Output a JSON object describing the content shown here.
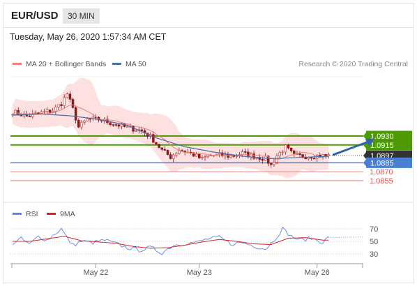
{
  "header": {
    "symbol": "EUR/USD",
    "timeframe": "30 MIN"
  },
  "timestamp": "Tuesday, May 26, 2020 1:57:34 AM CET",
  "legend": {
    "ma_bb_label": "MA 20 + Bollinger Bands",
    "ma50_label": "MA 50",
    "rsi_label": "RSI",
    "rsi_ma_label": "9MA",
    "credit": "Research © 2020 Trading Central"
  },
  "colors": {
    "ma20": "#f08080",
    "bollinger_fill": "#fde0e0",
    "ma50": "#4a6fa5",
    "resistance": "#4d9a06",
    "pivot": "#4a7fd4",
    "support": "#f28b8b",
    "last": "#333333",
    "arrow": "#2f66a8",
    "rsi": "#5b86e5",
    "rsi_ma": "#e02020",
    "candle_dark": "#8b1a1a"
  },
  "chart_data": [
    {
      "type": "candlestick",
      "title": "",
      "x_tick_labels": [
        "May 22",
        "May 23",
        "May 26"
      ],
      "price_levels": [
        {
          "value": 1.093,
          "label": "1.0930",
          "role": "resistance"
        },
        {
          "value": 1.0915,
          "label": "1.0915",
          "role": "resistance"
        },
        {
          "value": 1.0897,
          "label": "1.0897",
          "role": "last"
        },
        {
          "value": 1.0885,
          "label": "1.0885",
          "role": "pivot"
        },
        {
          "value": 1.087,
          "label": "1.0870",
          "role": "support"
        },
        {
          "value": 1.0855,
          "label": "1.0855",
          "role": "support"
        }
      ],
      "price_path": [
        [
          0,
          1.0971
        ],
        [
          5,
          1.0963
        ],
        [
          10,
          1.0969
        ],
        [
          14,
          1.0973
        ],
        [
          17,
          1.0985
        ],
        [
          19,
          1.1001
        ],
        [
          21,
          1.0975
        ],
        [
          23,
          1.0945
        ],
        [
          26,
          1.0958
        ],
        [
          30,
          1.0958
        ],
        [
          35,
          1.0951
        ],
        [
          40,
          1.0944
        ],
        [
          45,
          1.0939
        ],
        [
          48,
          1.0929
        ],
        [
          52,
          1.0906
        ],
        [
          55,
          1.0895
        ],
        [
          58,
          1.0907
        ],
        [
          62,
          1.0901
        ],
        [
          66,
          1.0891
        ],
        [
          68,
          1.0897
        ],
        [
          72,
          1.0898
        ],
        [
          76,
          1.0896
        ],
        [
          80,
          1.0901
        ],
        [
          84,
          1.0896
        ],
        [
          88,
          1.0892
        ],
        [
          90,
          1.0881
        ],
        [
          92,
          1.0897
        ],
        [
          95,
          1.0911
        ],
        [
          98,
          1.0897
        ],
        [
          102,
          1.0896
        ],
        [
          106,
          1.0897
        ],
        [
          110,
          1.0897
        ]
      ],
      "ma50_path": [
        [
          0,
          1.0965
        ],
        [
          10,
          1.0967
        ],
        [
          20,
          1.0964
        ],
        [
          30,
          1.0958
        ],
        [
          40,
          1.0948
        ],
        [
          50,
          1.0927
        ],
        [
          60,
          1.0912
        ],
        [
          70,
          1.0903
        ],
        [
          80,
          1.0896
        ],
        [
          90,
          1.0892
        ],
        [
          100,
          1.0894
        ],
        [
          110,
          1.0896
        ]
      ],
      "arrow": {
        "from": [
          110,
          1.0897
        ],
        "to": [
          122,
          1.093
        ]
      },
      "x_label_positions": [
        29,
        65,
        106
      ]
    },
    {
      "type": "line",
      "title": "",
      "ylim": [
        20,
        80
      ],
      "y_ticks": [
        70,
        50,
        30
      ],
      "series": [
        {
          "name": "RSI",
          "values": [
            [
              0,
              47
            ],
            [
              3,
              54
            ],
            [
              6,
              45
            ],
            [
              9,
              58
            ],
            [
              12,
              52
            ],
            [
              15,
              63
            ],
            [
              17,
              70
            ],
            [
              19,
              55
            ],
            [
              21,
              44
            ],
            [
              24,
              50
            ],
            [
              28,
              48
            ],
            [
              32,
              52
            ],
            [
              36,
              46
            ],
            [
              40,
              40
            ],
            [
              44,
              36
            ],
            [
              48,
              40
            ],
            [
              52,
              32
            ],
            [
              56,
              44
            ],
            [
              60,
              47
            ],
            [
              64,
              48
            ],
            [
              68,
              54
            ],
            [
              72,
              56
            ],
            [
              76,
              46
            ],
            [
              80,
              48
            ],
            [
              84,
              43
            ],
            [
              88,
              38
            ],
            [
              91,
              52
            ],
            [
              94,
              70
            ],
            [
              97,
              58
            ],
            [
              100,
              52
            ],
            [
              104,
              55
            ],
            [
              108,
              49
            ],
            [
              110,
              56
            ]
          ]
        },
        {
          "name": "9MA",
          "values": [
            [
              0,
              50
            ],
            [
              6,
              50
            ],
            [
              12,
              54
            ],
            [
              18,
              58
            ],
            [
              24,
              51
            ],
            [
              30,
              49
            ],
            [
              36,
              47
            ],
            [
              42,
              42
            ],
            [
              48,
              39
            ],
            [
              54,
              40
            ],
            [
              60,
              44
            ],
            [
              66,
              49
            ],
            [
              72,
              53
            ],
            [
              78,
              50
            ],
            [
              84,
              46
            ],
            [
              90,
              45
            ],
            [
              96,
              55
            ],
            [
              102,
              56
            ],
            [
              108,
              52
            ],
            [
              110,
              52
            ]
          ]
        }
      ]
    }
  ]
}
